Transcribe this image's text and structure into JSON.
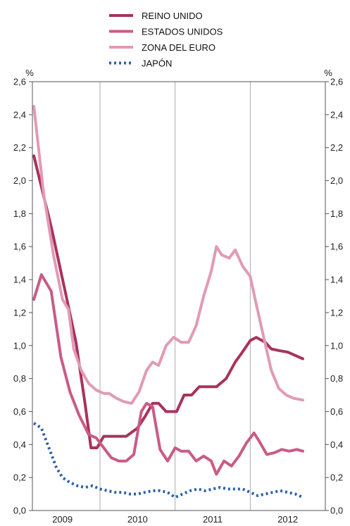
{
  "chart_data": {
    "type": "line",
    "ylabel_left": "%",
    "ylabel_right": "%",
    "ylim": [
      0,
      2.6
    ],
    "yticks": [
      "0,0",
      "0,2",
      "0,4",
      "0,6",
      "0,8",
      "1,0",
      "1,2",
      "1,4",
      "1,6",
      "1,8",
      "2,0",
      "2,2",
      "2,4",
      "2,6"
    ],
    "xlim": [
      2008.6,
      2012.5
    ],
    "year_ticks": [
      {
        "label": "2009",
        "value": 2009
      },
      {
        "label": "2010",
        "value": 2010
      },
      {
        "label": "2011",
        "value": 2011
      },
      {
        "label": "2012",
        "value": 2012
      }
    ],
    "grid_years": [
      2009.5,
      2010.5,
      2011.5
    ],
    "legend_placement": "top-center",
    "series": [
      {
        "name": "REINO UNIDO",
        "color": "#a8325e",
        "style": "solid",
        "x": [
          2008.62,
          2008.85,
          2009.05,
          2009.18,
          2009.3,
          2009.38,
          2009.46,
          2009.55,
          2009.72,
          2009.85,
          2010.0,
          2010.1,
          2010.2,
          2010.28,
          2010.38,
          2010.52,
          2010.62,
          2010.72,
          2010.82,
          2010.92,
          2011.05,
          2011.18,
          2011.3,
          2011.38,
          2011.5,
          2011.58,
          2011.7,
          2011.78,
          2011.88,
          2012.0,
          2012.1,
          2012.2
        ],
        "y": [
          2.15,
          1.72,
          1.3,
          1.02,
          0.65,
          0.38,
          0.38,
          0.45,
          0.45,
          0.45,
          0.5,
          0.57,
          0.65,
          0.65,
          0.6,
          0.6,
          0.7,
          0.7,
          0.75,
          0.75,
          0.75,
          0.8,
          0.9,
          0.95,
          1.03,
          1.05,
          1.02,
          0.98,
          0.97,
          0.96,
          0.94,
          0.92
        ]
      },
      {
        "name": "ESTADOS UNIDOS",
        "color": "#c95b86",
        "style": "solid",
        "x": [
          2008.62,
          2008.72,
          2008.85,
          2008.98,
          2009.1,
          2009.22,
          2009.35,
          2009.45,
          2009.55,
          2009.65,
          2009.75,
          2009.85,
          2009.95,
          2010.05,
          2010.12,
          2010.2,
          2010.3,
          2010.4,
          2010.5,
          2010.58,
          2010.68,
          2010.78,
          2010.88,
          2010.98,
          2011.05,
          2011.15,
          2011.25,
          2011.35,
          2011.45,
          2011.55,
          2011.62,
          2011.72,
          2011.82,
          2011.92,
          2012.02,
          2012.12,
          2012.2
        ],
        "y": [
          1.28,
          1.43,
          1.33,
          0.93,
          0.72,
          0.58,
          0.46,
          0.44,
          0.38,
          0.32,
          0.3,
          0.3,
          0.34,
          0.6,
          0.65,
          0.63,
          0.37,
          0.3,
          0.38,
          0.36,
          0.36,
          0.3,
          0.33,
          0.3,
          0.22,
          0.3,
          0.27,
          0.33,
          0.41,
          0.47,
          0.42,
          0.34,
          0.35,
          0.37,
          0.36,
          0.37,
          0.36
        ]
      },
      {
        "name": "ZONA DEL EURO",
        "color": "#e29ab5",
        "style": "solid",
        "x": [
          2008.62,
          2008.75,
          2008.88,
          2009.0,
          2009.08,
          2009.15,
          2009.25,
          2009.35,
          2009.45,
          2009.55,
          2009.62,
          2009.72,
          2009.82,
          2009.92,
          2010.02,
          2010.12,
          2010.2,
          2010.28,
          2010.38,
          2010.48,
          2010.58,
          2010.68,
          2010.78,
          2010.88,
          2010.98,
          2011.05,
          2011.12,
          2011.22,
          2011.3,
          2011.4,
          2011.5,
          2011.58,
          2011.68,
          2011.78,
          2011.88,
          2011.98,
          2012.08,
          2012.2
        ],
        "y": [
          2.45,
          1.92,
          1.55,
          1.28,
          1.22,
          0.98,
          0.85,
          0.77,
          0.73,
          0.71,
          0.71,
          0.68,
          0.66,
          0.65,
          0.72,
          0.85,
          0.9,
          0.88,
          1.0,
          1.05,
          1.02,
          1.02,
          1.12,
          1.3,
          1.45,
          1.6,
          1.55,
          1.53,
          1.58,
          1.48,
          1.42,
          1.25,
          1.05,
          0.85,
          0.74,
          0.7,
          0.68,
          0.67
        ]
      },
      {
        "name": "JAPÓN",
        "color": "#2f5fa8",
        "style": "dotted",
        "x": [
          2008.62,
          2008.72,
          2008.82,
          2008.92,
          2009.0,
          2009.1,
          2009.2,
          2009.3,
          2009.4,
          2009.5,
          2009.6,
          2009.7,
          2009.8,
          2009.9,
          2010.0,
          2010.1,
          2010.2,
          2010.3,
          2010.4,
          2010.5,
          2010.6,
          2010.7,
          2010.8,
          2010.9,
          2011.0,
          2011.1,
          2011.2,
          2011.3,
          2011.4,
          2011.5,
          2011.6,
          2011.7,
          2011.8,
          2011.9,
          2012.0,
          2012.1,
          2012.2
        ],
        "y": [
          0.53,
          0.5,
          0.38,
          0.26,
          0.2,
          0.17,
          0.15,
          0.14,
          0.15,
          0.13,
          0.12,
          0.11,
          0.11,
          0.1,
          0.1,
          0.11,
          0.12,
          0.12,
          0.11,
          0.08,
          0.1,
          0.12,
          0.13,
          0.12,
          0.13,
          0.14,
          0.13,
          0.13,
          0.13,
          0.11,
          0.09,
          0.1,
          0.11,
          0.12,
          0.11,
          0.1,
          0.08
        ]
      }
    ]
  }
}
